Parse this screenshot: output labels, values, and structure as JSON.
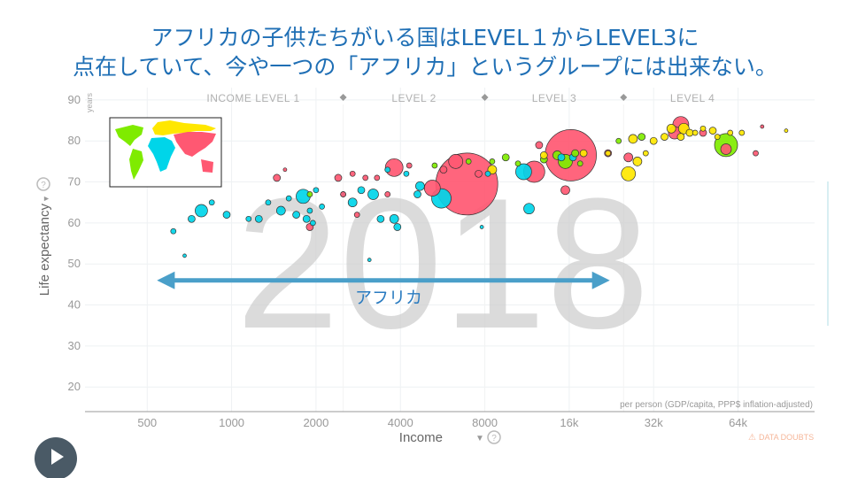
{
  "slide": {
    "title_line1": "アフリカの子供たちがいる国はLEVEL１からLEVEL3に",
    "title_line2": "点在していて、今や一つの「アフリカ」というグループには出来ない。"
  },
  "chart_data": {
    "type": "scatter",
    "year_label": "2018",
    "xlabel": "Income",
    "ylabel": "Life expectancy",
    "y_unit": "years",
    "x_scale": "log2",
    "x_ticks": [
      {
        "v": 500,
        "label": "500"
      },
      {
        "v": 1000,
        "label": "1000"
      },
      {
        "v": 2000,
        "label": "2000"
      },
      {
        "v": 4000,
        "label": "4000"
      },
      {
        "v": 8000,
        "label": "8000"
      },
      {
        "v": 16000,
        "label": "16k"
      },
      {
        "v": 32000,
        "label": "32k"
      },
      {
        "v": 64000,
        "label": "64k"
      }
    ],
    "xlim": [
      300,
      120000
    ],
    "y_ticks": [
      20,
      30,
      40,
      50,
      60,
      70,
      80,
      90
    ],
    "ylim": [
      14,
      93
    ],
    "income_levels": [
      "INCOME LEVEL 1",
      "LEVEL 2",
      "LEVEL 3",
      "LEVEL 4"
    ],
    "level_boundaries": [
      2500,
      8000,
      25000
    ],
    "x_note": "per person (GDP/capita, PPP$ inflation-adjusted)",
    "annotation": {
      "text": "アフリカ",
      "x_from": 550,
      "x_to": 22000,
      "y": 46
    },
    "data_doubts": "DATA DOUBTS",
    "colors": {
      "africa": "#00d5e9",
      "americas": "#7feb00",
      "asia": "#ff5872",
      "europe": "#ffe700"
    },
    "points": [
      {
        "x": 620,
        "y": 58,
        "r": 3,
        "region": "africa"
      },
      {
        "x": 680,
        "y": 52,
        "r": 2,
        "region": "africa"
      },
      {
        "x": 720,
        "y": 61,
        "r": 4,
        "region": "africa"
      },
      {
        "x": 780,
        "y": 63,
        "r": 7,
        "region": "africa"
      },
      {
        "x": 850,
        "y": 65,
        "r": 3,
        "region": "africa"
      },
      {
        "x": 960,
        "y": 62,
        "r": 4,
        "region": "africa"
      },
      {
        "x": 1150,
        "y": 61,
        "r": 3,
        "region": "africa"
      },
      {
        "x": 1250,
        "y": 61,
        "r": 4,
        "region": "africa"
      },
      {
        "x": 1350,
        "y": 65,
        "r": 3,
        "region": "africa"
      },
      {
        "x": 1500,
        "y": 63,
        "r": 5,
        "region": "africa"
      },
      {
        "x": 1600,
        "y": 66,
        "r": 3,
        "region": "africa"
      },
      {
        "x": 1700,
        "y": 62,
        "r": 4,
        "region": "africa"
      },
      {
        "x": 1800,
        "y": 66.5,
        "r": 8,
        "region": "africa"
      },
      {
        "x": 1850,
        "y": 61,
        "r": 4,
        "region": "africa"
      },
      {
        "x": 1900,
        "y": 63,
        "r": 3,
        "region": "africa"
      },
      {
        "x": 1950,
        "y": 60,
        "r": 3,
        "region": "africa"
      },
      {
        "x": 2000,
        "y": 68,
        "r": 3,
        "region": "africa"
      },
      {
        "x": 2100,
        "y": 64,
        "r": 3,
        "region": "africa"
      },
      {
        "x": 2500,
        "y": 67,
        "r": 3,
        "region": "africa"
      },
      {
        "x": 2700,
        "y": 65,
        "r": 5,
        "region": "africa"
      },
      {
        "x": 2900,
        "y": 68,
        "r": 4,
        "region": "africa"
      },
      {
        "x": 3100,
        "y": 51,
        "r": 2,
        "region": "africa"
      },
      {
        "x": 3200,
        "y": 67,
        "r": 6,
        "region": "africa"
      },
      {
        "x": 3400,
        "y": 61,
        "r": 4,
        "region": "africa"
      },
      {
        "x": 3600,
        "y": 73,
        "r": 3,
        "region": "africa"
      },
      {
        "x": 3800,
        "y": 61,
        "r": 5,
        "region": "africa"
      },
      {
        "x": 3900,
        "y": 59,
        "r": 4,
        "region": "africa"
      },
      {
        "x": 4200,
        "y": 72,
        "r": 3,
        "region": "africa"
      },
      {
        "x": 4600,
        "y": 67,
        "r": 4,
        "region": "africa"
      },
      {
        "x": 4700,
        "y": 69,
        "r": 5,
        "region": "africa"
      },
      {
        "x": 5600,
        "y": 66,
        "r": 11,
        "region": "africa"
      },
      {
        "x": 7800,
        "y": 59,
        "r": 2,
        "region": "africa"
      },
      {
        "x": 8200,
        "y": 72,
        "r": 3,
        "region": "africa"
      },
      {
        "x": 11500,
        "y": 63.5,
        "r": 6,
        "region": "africa"
      },
      {
        "x": 11000,
        "y": 72.5,
        "r": 9,
        "region": "africa"
      },
      {
        "x": 15000,
        "y": 76,
        "r": 4,
        "region": "africa"
      },
      {
        "x": 16500,
        "y": 76,
        "r": 4,
        "region": "africa"
      },
      {
        "x": 1450,
        "y": 71,
        "r": 4,
        "region": "asia"
      },
      {
        "x": 1550,
        "y": 73,
        "r": 2,
        "region": "asia"
      },
      {
        "x": 1900,
        "y": 59,
        "r": 4,
        "region": "asia"
      },
      {
        "x": 2400,
        "y": 71,
        "r": 4,
        "region": "asia"
      },
      {
        "x": 2500,
        "y": 67,
        "r": 3,
        "region": "asia"
      },
      {
        "x": 2700,
        "y": 72,
        "r": 3,
        "region": "asia"
      },
      {
        "x": 2800,
        "y": 62,
        "r": 3,
        "region": "asia"
      },
      {
        "x": 3000,
        "y": 71,
        "r": 3,
        "region": "asia"
      },
      {
        "x": 3300,
        "y": 71,
        "r": 3,
        "region": "asia"
      },
      {
        "x": 3600,
        "y": 67,
        "r": 3,
        "region": "asia"
      },
      {
        "x": 3800,
        "y": 73.5,
        "r": 10,
        "region": "asia"
      },
      {
        "x": 4300,
        "y": 74,
        "r": 3,
        "region": "asia"
      },
      {
        "x": 5200,
        "y": 68.5,
        "r": 9,
        "region": "asia"
      },
      {
        "x": 5700,
        "y": 73,
        "r": 4,
        "region": "asia"
      },
      {
        "x": 6300,
        "y": 75,
        "r": 8,
        "region": "asia"
      },
      {
        "x": 6900,
        "y": 69.5,
        "r": 35,
        "region": "asia"
      },
      {
        "x": 7600,
        "y": 72,
        "r": 4,
        "region": "asia"
      },
      {
        "x": 12000,
        "y": 72.5,
        "r": 12,
        "region": "asia"
      },
      {
        "x": 12500,
        "y": 79,
        "r": 4,
        "region": "asia"
      },
      {
        "x": 15500,
        "y": 68,
        "r": 5,
        "region": "asia"
      },
      {
        "x": 16200,
        "y": 76.5,
        "r": 29,
        "region": "asia"
      },
      {
        "x": 22000,
        "y": 77,
        "r": 4,
        "region": "asia"
      },
      {
        "x": 26000,
        "y": 76,
        "r": 5,
        "region": "asia"
      },
      {
        "x": 38000,
        "y": 82,
        "r": 7,
        "region": "asia"
      },
      {
        "x": 40000,
        "y": 84,
        "r": 9,
        "region": "asia"
      },
      {
        "x": 48000,
        "y": 82,
        "r": 4,
        "region": "asia"
      },
      {
        "x": 58000,
        "y": 78,
        "r": 6,
        "region": "asia"
      },
      {
        "x": 74000,
        "y": 77,
        "r": 3,
        "region": "asia"
      },
      {
        "x": 78000,
        "y": 83.5,
        "r": 2,
        "region": "asia"
      },
      {
        "x": 1900,
        "y": 67,
        "r": 3,
        "region": "americas"
      },
      {
        "x": 5300,
        "y": 74,
        "r": 3,
        "region": "americas"
      },
      {
        "x": 7000,
        "y": 75,
        "r": 3,
        "region": "americas"
      },
      {
        "x": 8500,
        "y": 75,
        "r": 3,
        "region": "americas"
      },
      {
        "x": 9500,
        "y": 76,
        "r": 4,
        "region": "americas"
      },
      {
        "x": 10500,
        "y": 74.5,
        "r": 3,
        "region": "americas"
      },
      {
        "x": 13000,
        "y": 75.5,
        "r": 4,
        "region": "americas"
      },
      {
        "x": 14500,
        "y": 76.5,
        "r": 5,
        "region": "americas"
      },
      {
        "x": 15500,
        "y": 75,
        "r": 8,
        "region": "americas"
      },
      {
        "x": 16800,
        "y": 77,
        "r": 4,
        "region": "americas"
      },
      {
        "x": 17500,
        "y": 74.5,
        "r": 3,
        "region": "americas"
      },
      {
        "x": 24000,
        "y": 80,
        "r": 3,
        "region": "americas"
      },
      {
        "x": 29000,
        "y": 81,
        "r": 4,
        "region": "americas"
      },
      {
        "x": 58000,
        "y": 79,
        "r": 13,
        "region": "americas"
      },
      {
        "x": 8500,
        "y": 73,
        "r": 5,
        "region": "europe"
      },
      {
        "x": 13000,
        "y": 76.5,
        "r": 4,
        "region": "europe"
      },
      {
        "x": 18000,
        "y": 77,
        "r": 4,
        "region": "europe"
      },
      {
        "x": 22000,
        "y": 77,
        "r": 3,
        "region": "europe"
      },
      {
        "x": 26000,
        "y": 72,
        "r": 8,
        "region": "europe"
      },
      {
        "x": 27000,
        "y": 80.5,
        "r": 5,
        "region": "europe"
      },
      {
        "x": 28000,
        "y": 75,
        "r": 5,
        "region": "europe"
      },
      {
        "x": 30000,
        "y": 77,
        "r": 3,
        "region": "europe"
      },
      {
        "x": 32000,
        "y": 80,
        "r": 4,
        "region": "europe"
      },
      {
        "x": 35000,
        "y": 81,
        "r": 4,
        "region": "europe"
      },
      {
        "x": 37000,
        "y": 83,
        "r": 5,
        "region": "europe"
      },
      {
        "x": 40000,
        "y": 81,
        "r": 4,
        "region": "europe"
      },
      {
        "x": 41000,
        "y": 83,
        "r": 6,
        "region": "europe"
      },
      {
        "x": 43000,
        "y": 82,
        "r": 4,
        "region": "europe"
      },
      {
        "x": 45000,
        "y": 82,
        "r": 3,
        "region": "europe"
      },
      {
        "x": 48000,
        "y": 83,
        "r": 3,
        "region": "europe"
      },
      {
        "x": 52000,
        "y": 82.5,
        "r": 4,
        "region": "europe"
      },
      {
        "x": 54000,
        "y": 81,
        "r": 3,
        "region": "europe"
      },
      {
        "x": 60000,
        "y": 82,
        "r": 3,
        "region": "europe"
      },
      {
        "x": 66000,
        "y": 82,
        "r": 3,
        "region": "europe"
      },
      {
        "x": 95000,
        "y": 82.5,
        "r": 2,
        "region": "europe"
      }
    ]
  }
}
